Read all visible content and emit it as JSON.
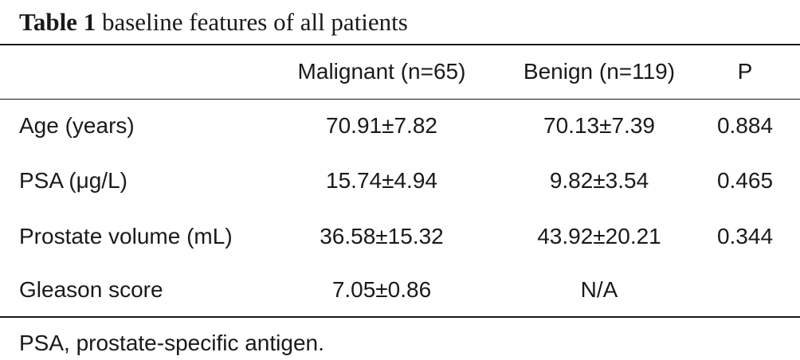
{
  "caption": {
    "label": "Table 1",
    "text": "baseline features of all patients"
  },
  "table": {
    "headers": [
      "",
      "Malignant (n=65)",
      "Benign (n=119)",
      "P"
    ],
    "rows": [
      [
        "Age (years)",
        "70.91±7.82",
        "70.13±7.39",
        "0.884"
      ],
      [
        "PSA (μg/L)",
        "15.74±4.94",
        "9.82±3.54",
        "0.465"
      ],
      [
        "Prostate volume (mL)",
        "36.58±15.32",
        "43.92±20.21",
        "0.344"
      ],
      [
        "Gleason score",
        "7.05±0.86",
        "N/A",
        ""
      ]
    ]
  },
  "footnote": "PSA, prostate-specific antigen."
}
